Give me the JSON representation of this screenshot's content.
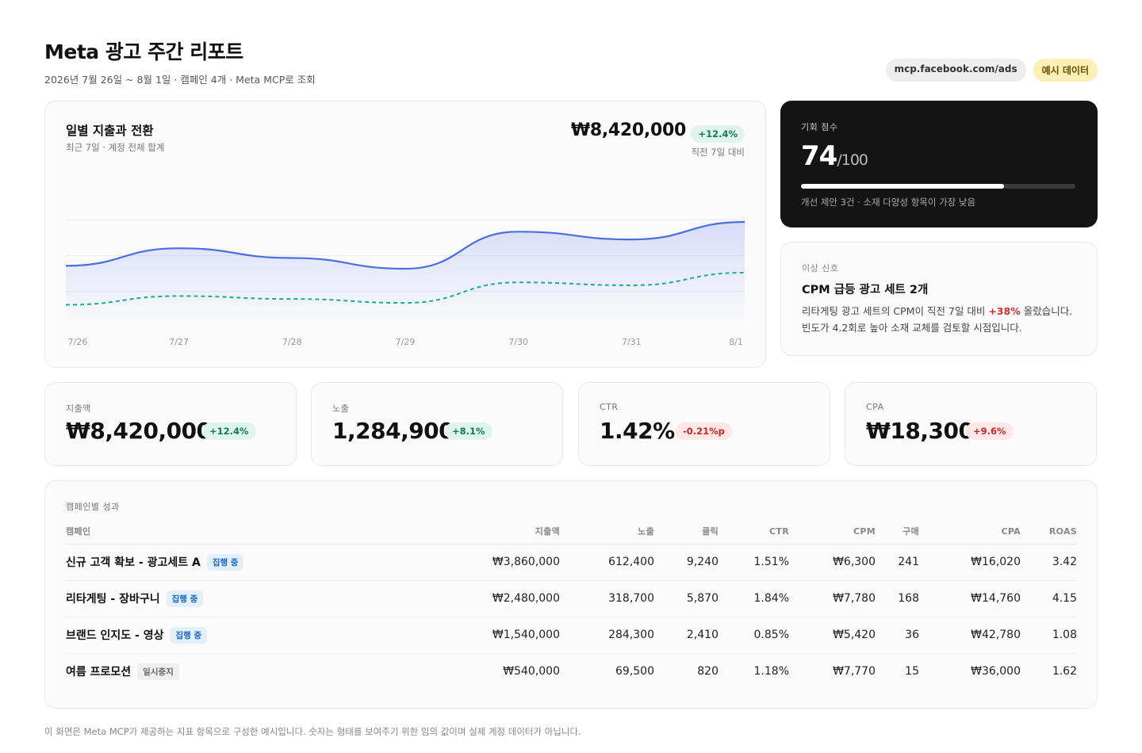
{
  "header": {
    "title": "Meta 광고 주간 리포트",
    "subtitle": "2026년 7월 26일 ~ 8월 1일 · 캠페인 4개 · Meta MCP로 조회",
    "source_chip": "mcp.facebook.com/ads",
    "sample_chip": "예시 데이터"
  },
  "chart_card": {
    "title": "일별 지출과 전환",
    "subtitle": "최근 7일 · 계정 전체 합계",
    "total": "₩8,420,000",
    "delta": "+12.4%",
    "compare_note": "직전 7일 대비"
  },
  "chart_data": {
    "type": "line",
    "categories": [
      "7/26",
      "7/27",
      "7/28",
      "7/29",
      "7/30",
      "7/31",
      "8/1"
    ],
    "series": [
      {
        "values": [
          55,
          73,
          63,
          52,
          90,
          82,
          100
        ],
        "color": "#4a6ee0",
        "style": "solid",
        "area": true
      },
      {
        "values": [
          15,
          24,
          21,
          17,
          38,
          35,
          48
        ],
        "color": "#14b08a",
        "style": "dashed",
        "area": false
      }
    ],
    "ylim": [
      0,
      100
    ],
    "grid": true
  },
  "score_card": {
    "label": "기회 점수",
    "value": "74",
    "max": "/100",
    "progress": 0.74,
    "note": "개선 제안 3건 · 소재 다양성 항목이 가장 낮음"
  },
  "alert_card": {
    "label": "이상 신호",
    "title": "CPM 급등 광고 세트 2개",
    "body_before": "리타게팅 광고 세트의 CPM이 직전 7일 대비 ",
    "body_highlight": "+38%",
    "body_after": " 올랐습니다. 빈도가 4.2회로 높아 소재 교체를 검토할 시점입니다."
  },
  "kpis": [
    {
      "label": "지출액",
      "value": "₩8,420,000",
      "delta": "+12.4%",
      "tone": "green"
    },
    {
      "label": "노출",
      "value": "1,284,900",
      "delta": "+8.1%",
      "tone": "green"
    },
    {
      "label": "CTR",
      "value": "1.42%",
      "delta": "-0.21%p",
      "tone": "red"
    },
    {
      "label": "CPA",
      "value": "₩18,300",
      "delta": "+9.6%",
      "tone": "red"
    }
  ],
  "table": {
    "caption": "캠페인별 성과",
    "headers": [
      "캠페인",
      "지출액",
      "노출",
      "클릭",
      "CTR",
      "CPM",
      "구매",
      "CPA",
      "ROAS"
    ],
    "rows": [
      {
        "name": "신규 고객 확보 - 광고세트 A",
        "status": "집행 중",
        "status_type": "active",
        "spend": "₩3,860,000",
        "impressions": "612,400",
        "clicks": "9,240",
        "ctr": "1.51%",
        "cpm": "₩6,300",
        "purchases": "241",
        "cpa": "₩16,020",
        "roas": "3.42"
      },
      {
        "name": "리타게팅 - 장바구니",
        "status": "집행 중",
        "status_type": "active",
        "spend": "₩2,480,000",
        "impressions": "318,700",
        "clicks": "5,870",
        "ctr": "1.84%",
        "cpm": "₩7,780",
        "purchases": "168",
        "cpa": "₩14,760",
        "roas": "4.15"
      },
      {
        "name": "브랜드 인지도 - 영상",
        "status": "집행 중",
        "status_type": "active",
        "spend": "₩1,540,000",
        "impressions": "284,300",
        "clicks": "2,410",
        "ctr": "0.85%",
        "cpm": "₩5,420",
        "purchases": "36",
        "cpa": "₩42,780",
        "roas": "1.08"
      },
      {
        "name": "여름 프로모션",
        "status": "일시중지",
        "status_type": "paused",
        "spend": "₩540,000",
        "impressions": "69,500",
        "clicks": "820",
        "ctr": "1.18%",
        "cpm": "₩7,770",
        "purchases": "15",
        "cpa": "₩36,000",
        "roas": "1.62"
      }
    ]
  },
  "footer": "이 화면은 Meta MCP가 제공하는 지표 항목으로 구성한 예시입니다. 숫자는 형태를 보여주기 위한 임의 값이며 실제 계정 데이터가 아닙니다."
}
